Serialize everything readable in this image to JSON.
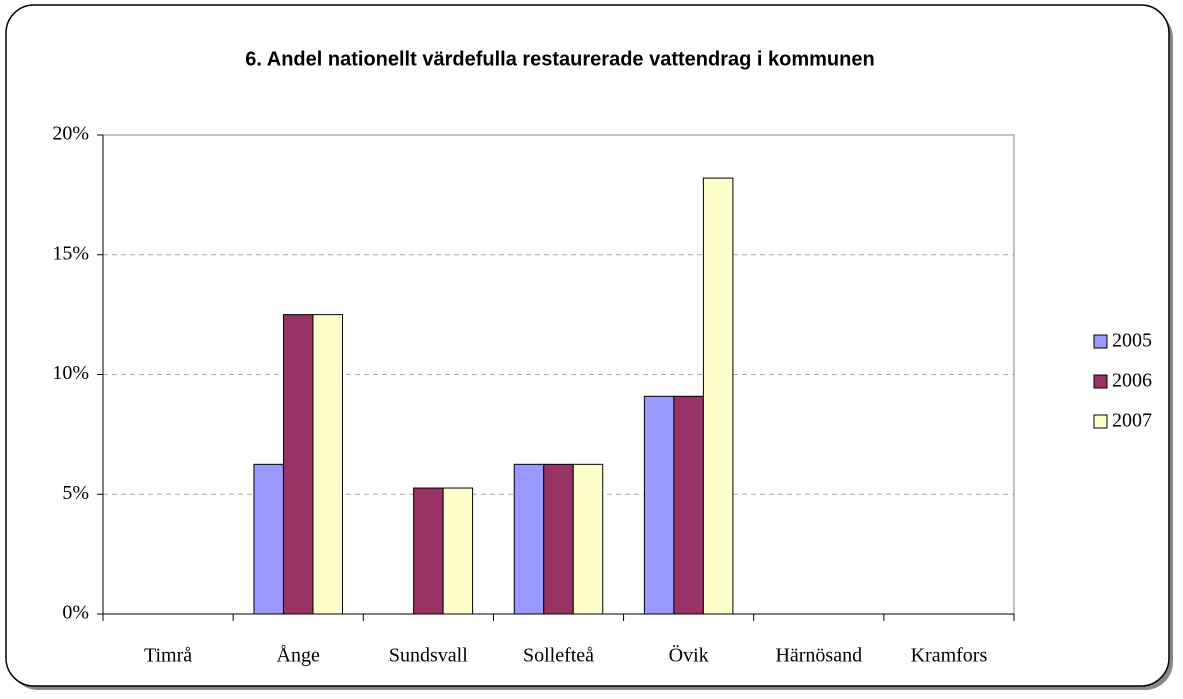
{
  "chart_data": {
    "type": "bar",
    "title": "6. Andel nationellt värdefulla restaurerade vattendrag i kommunen",
    "categories": [
      "Timrå",
      "Ånge",
      "Sundsvall",
      "Sollefteå",
      "Övik",
      "Härnösand",
      "Kramfors"
    ],
    "series": [
      {
        "name": "2005",
        "color": "#9999ff",
        "values": [
          0,
          6.25,
          0,
          6.25,
          9.09,
          0,
          0
        ]
      },
      {
        "name": "2006",
        "color": "#993366",
        "values": [
          0,
          12.5,
          5.26,
          6.25,
          9.09,
          0,
          0
        ]
      },
      {
        "name": "2007",
        "color": "#ffffcc",
        "values": [
          0,
          12.5,
          5.26,
          6.25,
          18.2,
          0,
          0
        ]
      }
    ],
    "ylim": [
      0,
      20
    ],
    "yticks": [
      {
        "value": 0,
        "label": "0%"
      },
      {
        "value": 5,
        "label": "5%"
      },
      {
        "value": 10,
        "label": "10%"
      },
      {
        "value": 15,
        "label": "15%"
      },
      {
        "value": 20,
        "label": "20%"
      }
    ],
    "grid": true,
    "legend": "right"
  }
}
